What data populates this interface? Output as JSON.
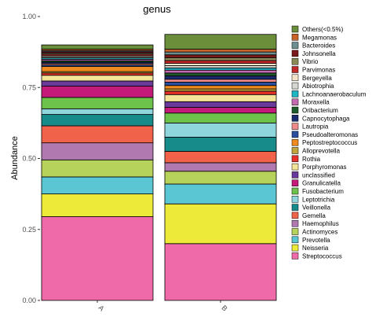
{
  "chart_data": {
    "type": "bar",
    "stacked": true,
    "title": "genus",
    "xlabel": "",
    "ylabel": "Abundance",
    "ylim": [
      0,
      1
    ],
    "yticks": [
      "0.00",
      "0.25",
      "0.50",
      "0.75",
      "1.00"
    ],
    "categories": [
      "A",
      "B"
    ],
    "legend_position": "right",
    "series": [
      {
        "name": "Others(<0.5%)",
        "color": "#6b8e3a",
        "values": [
          0.015,
          0.052
        ]
      },
      {
        "name": "Megamonas",
        "color": "#c8642a",
        "values": [
          0.005,
          0.01
        ]
      },
      {
        "name": "Bacteroides",
        "color": "#6d8f8f",
        "values": [
          0.004,
          0.01
        ]
      },
      {
        "name": "Johnsonella",
        "color": "#7a1a1a",
        "values": [
          0.005,
          0.01
        ]
      },
      {
        "name": "Vibrio",
        "color": "#8a8a5a",
        "values": [
          0.004,
          0.01
        ]
      },
      {
        "name": "Parvimonas",
        "color": "#c22a2a",
        "values": [
          0.005,
          0.01
        ]
      },
      {
        "name": "Bergeyella",
        "color": "#f2e2c8",
        "values": [
          0.004,
          0.008
        ]
      },
      {
        "name": "Abiotrophia",
        "color": "#d6d6d2",
        "values": [
          0.004,
          0.008
        ]
      },
      {
        "name": "Lachnoanaerobaculum",
        "color": "#1fb5c4",
        "values": [
          0.005,
          0.008
        ]
      },
      {
        "name": "Moraxella",
        "color": "#c46bb2",
        "values": [
          0.005,
          0.01
        ]
      },
      {
        "name": "Oribacterium",
        "color": "#1f5a2a",
        "values": [
          0.005,
          0.01
        ]
      },
      {
        "name": "Capnocytophaga",
        "color": "#1a2a6e",
        "values": [
          0.005,
          0.012
        ]
      },
      {
        "name": "Lautropia",
        "color": "#ef8a8a",
        "values": [
          0.005,
          0.01
        ]
      },
      {
        "name": "Pseudoalteromonas",
        "color": "#2a4fa0",
        "values": [
          0.005,
          0.012
        ]
      },
      {
        "name": "Peptostreptococcus",
        "color": "#f08a1e",
        "values": [
          0.018,
          0.012
        ]
      },
      {
        "name": "Alloprevotella",
        "color": "#c2a23a",
        "values": [
          0.005,
          0.008
        ]
      },
      {
        "name": "Rothia",
        "color": "#e8302a",
        "values": [
          0.008,
          0.012
        ]
      },
      {
        "name": "Porphyromonas",
        "color": "#f4e49a",
        "values": [
          0.02,
          0.025
        ]
      },
      {
        "name": "unclassified",
        "color": "#6a3a9a",
        "values": [
          0.018,
          0.02
        ]
      },
      {
        "name": "Granulicatella",
        "color": "#c41a7a",
        "values": [
          0.04,
          0.02
        ]
      },
      {
        "name": "Fusobacterium",
        "color": "#6cc24a",
        "values": [
          0.04,
          0.035
        ]
      },
      {
        "name": "Leptotrichia",
        "color": "#8fd6dc",
        "values": [
          0.02,
          0.05
        ]
      },
      {
        "name": "Veillonella",
        "color": "#178a8a",
        "values": [
          0.04,
          0.05
        ]
      },
      {
        "name": "Gemella",
        "color": "#f0624a",
        "values": [
          0.06,
          0.04
        ]
      },
      {
        "name": "Haemophilus",
        "color": "#b07ab0",
        "values": [
          0.06,
          0.03
        ]
      },
      {
        "name": "Actinomyces",
        "color": "#b6d25a",
        "values": [
          0.06,
          0.045
        ]
      },
      {
        "name": "Prevotella",
        "color": "#5ac6d4",
        "values": [
          0.06,
          0.07
        ]
      },
      {
        "name": "Neisseria",
        "color": "#eeea3a",
        "values": [
          0.08,
          0.14
        ]
      },
      {
        "name": "Streptococcus",
        "color": "#ee6aa8",
        "values": [
          0.295,
          0.2
        ]
      }
    ]
  }
}
